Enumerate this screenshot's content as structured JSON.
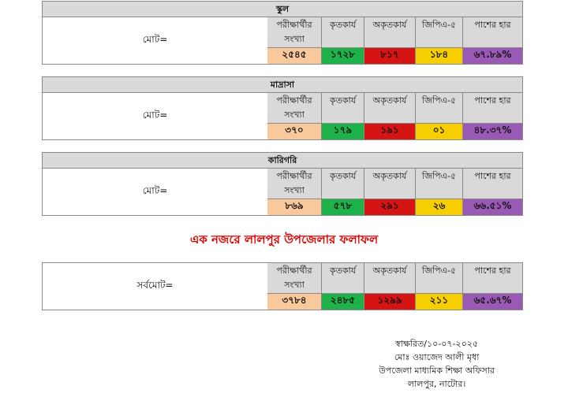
{
  "headers": {
    "candidates": [
      "পরীক্ষার্থীর",
      "সংখ্যা"
    ],
    "passed": "কৃতকার্য",
    "failed": "অকৃতকার্য",
    "gpa5": "জিপিএ-৫",
    "pass_rate": "পাশের হার"
  },
  "colors": {
    "candidates": "#f9c89b",
    "passed": "#1db34a",
    "failed": "#d61414",
    "gpa5": "#f7cf00",
    "pass_rate": "#9b59b6",
    "header_bg": "#d9d9d9",
    "headline": "#e00000"
  },
  "school": {
    "title": "স্কুল",
    "total_label": "মোট=",
    "candidates": "২৫৪৫",
    "passed": "১৭২৮",
    "failed": "৮১৭",
    "gpa5": "১৮৪",
    "pass_rate": "৬৭.৮৯%"
  },
  "madrasa": {
    "title": "মাদ্রাসা",
    "total_label": "মোট=",
    "candidates": "৩৭০",
    "passed": "১৭৯",
    "failed": "১৯১",
    "gpa5": "০১",
    "pass_rate": "৪৮.৩৭%"
  },
  "technical": {
    "title": "কারিগরি",
    "total_label": "মোট=",
    "candidates": "৮৬৯",
    "passed": "৫৭৮",
    "failed": "২৯১",
    "gpa5": "২৬",
    "pass_rate": "৬৬.৫১%"
  },
  "headline": "এক নজরে লালপুর উপজেলার ফলাফল",
  "grand": {
    "total_label": "সর্বমোট=",
    "candidates": "৩৭৮৪",
    "passed": "২৪৮৫",
    "failed": "১২৯৯",
    "gpa5": "২১১",
    "pass_rate": "৬৫.৬৭%"
  },
  "signature": {
    "line1": "স্বাক্ষরিত/১০-০৭-২০২৫",
    "line2": "মোঃ ওয়াজেদ আলী মৃধা",
    "line3": "উপজেলা মাধ্যমিক শিক্ষা অফিসার",
    "line4": "লালপুর, নাটোর।"
  }
}
